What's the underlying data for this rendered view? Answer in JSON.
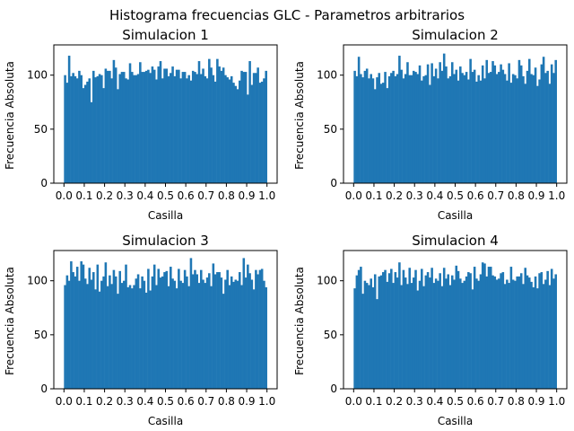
{
  "figure": {
    "suptitle": "Histograma frecuencias GLC - Parametros arbitrarios"
  },
  "style": {
    "bar_color": "#1f77b4",
    "axis_color": "#000000"
  },
  "chart_data": [
    {
      "type": "bar",
      "title": "Simulacion 1",
      "xlabel": "Casilla",
      "ylabel": "Frecuencia Absoluta",
      "xlim": [
        -0.05,
        1.05
      ],
      "ylim": [
        0,
        128
      ],
      "xticks": [
        "0.0",
        "0.1",
        "0.2",
        "0.3",
        "0.4",
        "0.5",
        "0.6",
        "0.7",
        "0.8",
        "0.9",
        "1.0"
      ],
      "yticks": [
        0,
        50,
        100
      ],
      "bin_range": [
        0,
        1
      ],
      "values": [
        100,
        93,
        118,
        99,
        102,
        99,
        97,
        104,
        100,
        88,
        91,
        94,
        97,
        75,
        104,
        98,
        99,
        101,
        100,
        88,
        106,
        104,
        104,
        97,
        114,
        107,
        87,
        101,
        103,
        103,
        97,
        96,
        111,
        103,
        100,
        100,
        101,
        112,
        103,
        103,
        104,
        105,
        102,
        108,
        105,
        96,
        108,
        113,
        97,
        106,
        106,
        99,
        102,
        108,
        99,
        105,
        105,
        97,
        103,
        103,
        97,
        100,
        95,
        104,
        103,
        101,
        113,
        101,
        106,
        99,
        97,
        115,
        107,
        100,
        94,
        115,
        108,
        104,
        107,
        100,
        98,
        96,
        99,
        93,
        90,
        87,
        95,
        104,
        103,
        103,
        82,
        113,
        91,
        102,
        102,
        107,
        93,
        94,
        97,
        104
      ]
    },
    {
      "type": "bar",
      "title": "Simulacion 2",
      "xlabel": "Casilla",
      "ylabel": "Frecuencia Absoluta",
      "xlim": [
        -0.05,
        1.05
      ],
      "ylim": [
        0,
        128
      ],
      "xticks": [
        "0.0",
        "0.1",
        "0.2",
        "0.3",
        "0.4",
        "0.5",
        "0.6",
        "0.7",
        "0.8",
        "0.9",
        "1.0"
      ],
      "yticks": [
        0,
        50,
        100
      ],
      "bin_range": [
        0,
        1
      ],
      "values": [
        104,
        99,
        117,
        101,
        98,
        104,
        106,
        97,
        101,
        97,
        87,
        98,
        102,
        92,
        93,
        103,
        88,
        99,
        102,
        104,
        99,
        101,
        118,
        105,
        97,
        101,
        112,
        100,
        100,
        104,
        103,
        101,
        109,
        95,
        99,
        100,
        110,
        91,
        111,
        99,
        106,
        97,
        112,
        104,
        120,
        108,
        97,
        99,
        112,
        101,
        105,
        95,
        108,
        102,
        100,
        103,
        96,
        115,
        103,
        105,
        94,
        100,
        95,
        109,
        97,
        114,
        102,
        103,
        113,
        109,
        101,
        103,
        110,
        105,
        101,
        95,
        111,
        93,
        101,
        100,
        97,
        114,
        109,
        99,
        92,
        104,
        115,
        101,
        100,
        107,
        90,
        96,
        110,
        117,
        102,
        104,
        92,
        110,
        102,
        114
      ]
    },
    {
      "type": "bar",
      "title": "Simulacion 3",
      "xlabel": "Casilla",
      "ylabel": "Frecuencia Absoluta",
      "xlim": [
        -0.05,
        1.05
      ],
      "ylim": [
        0,
        128
      ],
      "xticks": [
        "0.0",
        "0.1",
        "0.2",
        "0.3",
        "0.4",
        "0.5",
        "0.6",
        "0.7",
        "0.8",
        "0.9",
        "1.0"
      ],
      "yticks": [
        0,
        50,
        100
      ],
      "bin_range": [
        0,
        1
      ],
      "values": [
        96,
        105,
        100,
        118,
        108,
        104,
        113,
        100,
        118,
        115,
        102,
        97,
        112,
        101,
        108,
        92,
        115,
        90,
        100,
        104,
        117,
        95,
        105,
        97,
        110,
        104,
        88,
        109,
        98,
        100,
        115,
        94,
        96,
        93,
        96,
        102,
        106,
        93,
        104,
        100,
        89,
        111,
        91,
        104,
        115,
        96,
        111,
        103,
        104,
        108,
        109,
        95,
        113,
        102,
        100,
        93,
        111,
        100,
        98,
        110,
        104,
        95,
        121,
        106,
        110,
        106,
        98,
        110,
        101,
        98,
        103,
        107,
        95,
        116,
        106,
        108,
        108,
        103,
        88,
        101,
        110,
        96,
        104,
        99,
        101,
        100,
        108,
        96,
        121,
        103,
        115,
        107,
        101,
        92,
        110,
        106,
        110,
        111,
        100,
        94
      ]
    },
    {
      "type": "bar",
      "title": "Simulacion 4",
      "xlabel": "Casilla",
      "ylabel": "Frecuencia Absoluta",
      "xlim": [
        -0.05,
        1.05
      ],
      "ylim": [
        0,
        128
      ],
      "xticks": [
        "0.0",
        "0.1",
        "0.2",
        "0.3",
        "0.4",
        "0.5",
        "0.6",
        "0.7",
        "0.8",
        "0.9",
        "1.0"
      ],
      "yticks": [
        0,
        50,
        100
      ],
      "bin_range": [
        0,
        1
      ],
      "values": [
        93,
        105,
        110,
        113,
        88,
        100,
        98,
        96,
        102,
        94,
        106,
        83,
        104,
        105,
        108,
        110,
        99,
        107,
        111,
        98,
        108,
        103,
        117,
        96,
        110,
        103,
        97,
        112,
        98,
        103,
        110,
        91,
        100,
        111,
        95,
        105,
        108,
        103,
        112,
        98,
        102,
        100,
        107,
        95,
        112,
        102,
        106,
        96,
        105,
        101,
        114,
        109,
        102,
        98,
        100,
        104,
        108,
        107,
        92,
        113,
        102,
        100,
        106,
        117,
        116,
        104,
        113,
        113,
        105,
        104,
        101,
        102,
        107,
        108,
        97,
        101,
        98,
        113,
        101,
        100,
        104,
        104,
        107,
        97,
        112,
        105,
        103,
        99,
        94,
        104,
        93,
        107,
        108,
        97,
        101,
        109,
        96,
        111,
        102,
        106
      ]
    }
  ]
}
